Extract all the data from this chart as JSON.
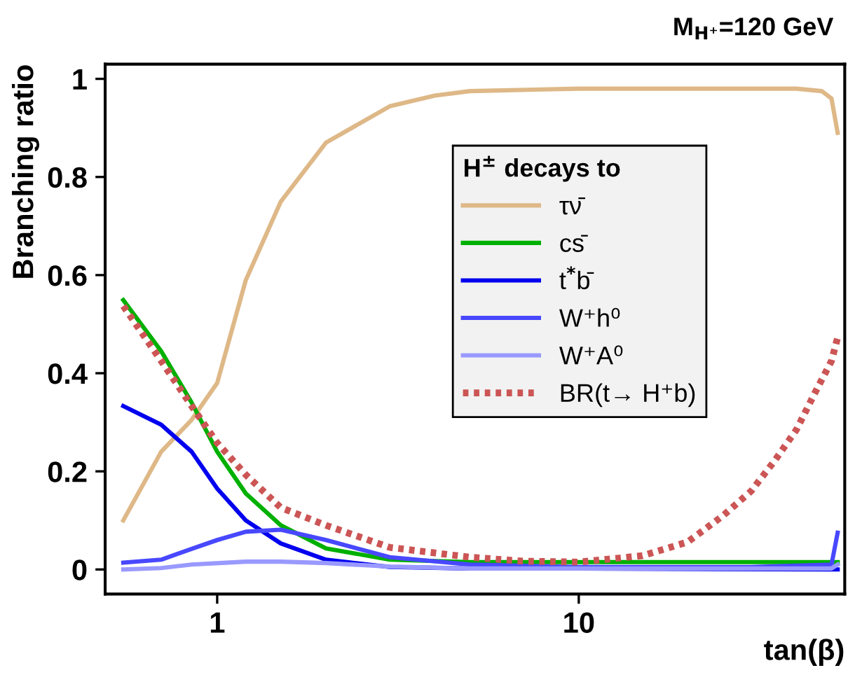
{
  "chart_data": {
    "type": "line",
    "title": "M$_{H⁺}$=120 GeV",
    "xlabel": "tan(β)",
    "ylabel": "Branching ratio",
    "legend_title": "H$^{±}$ decays to",
    "log": "x",
    "xlim": [
      0.49,
      54.4
    ],
    "ylim": [
      -0.05,
      1.03
    ],
    "xticks": [
      1,
      10
    ],
    "yticks": [
      0,
      0.2,
      0.4,
      0.6,
      0.8,
      1
    ],
    "grid": false,
    "legend": "right",
    "line_style": "solid",
    "marker": "none",
    "series": [
      {
        "name": "τν̄",
        "color": "#deb887",
        "x": [
          0.55,
          0.7,
          0.85,
          1,
          1.2,
          1.5,
          2,
          3,
          4,
          5,
          10,
          20,
          30,
          40,
          47,
          50,
          52
        ],
        "values": [
          0.1,
          0.24,
          0.305,
          0.38,
          0.59,
          0.75,
          0.87,
          0.944,
          0.966,
          0.975,
          0.98,
          0.98,
          0.98,
          0.98,
          0.975,
          0.96,
          0.89
        ]
      },
      {
        "name": "cs̄",
        "color": "#00b000",
        "x": [
          0.55,
          0.7,
          0.85,
          1,
          1.2,
          1.5,
          2,
          3,
          5,
          10,
          20,
          52
        ],
        "values": [
          0.549,
          0.445,
          0.34,
          0.24,
          0.155,
          0.09,
          0.043,
          0.02,
          0.015,
          0.015,
          0.015,
          0.015
        ]
      },
      {
        "name": "t$^{*}$b̄",
        "color": "#0000ee",
        "x": [
          0.55,
          0.7,
          0.85,
          1,
          1.2,
          1.5,
          2,
          3,
          5,
          10,
          52
        ],
        "values": [
          0.333,
          0.295,
          0.24,
          0.165,
          0.1,
          0.053,
          0.02,
          0.005,
          0.002,
          0.002,
          0.0
        ]
      },
      {
        "name": "W⁺h⁰",
        "color": "#4848ff",
        "x": [
          0.55,
          0.7,
          0.85,
          1,
          1.2,
          1.5,
          2,
          3,
          5,
          10,
          30,
          50,
          52
        ],
        "values": [
          0.014,
          0.02,
          0.042,
          0.06,
          0.077,
          0.081,
          0.06,
          0.025,
          0.01,
          0.005,
          0.005,
          0.01,
          0.075
        ]
      },
      {
        "name": "W⁺A⁰",
        "color": "#9999ff",
        "x": [
          0.55,
          0.7,
          0.85,
          1.2,
          1.5,
          2,
          3,
          5,
          10,
          50,
          52
        ],
        "values": [
          0.0,
          0.003,
          0.01,
          0.016,
          0.016,
          0.013,
          0.006,
          0.002,
          0.002,
          0.002,
          0.01
        ]
      },
      {
        "name": "BR(t→ H⁺b)",
        "color": "#cc5555",
        "line_style": "dotted",
        "x": [
          0.55,
          0.7,
          0.85,
          1,
          1.2,
          1.5,
          2,
          3,
          5,
          7,
          10,
          15,
          20,
          25,
          30,
          35,
          40,
          45,
          50,
          52
        ],
        "values": [
          0.537,
          0.425,
          0.333,
          0.258,
          0.193,
          0.126,
          0.09,
          0.045,
          0.025,
          0.017,
          0.015,
          0.028,
          0.056,
          0.109,
          0.16,
          0.224,
          0.285,
          0.36,
          0.425,
          0.473
        ]
      }
    ]
  }
}
